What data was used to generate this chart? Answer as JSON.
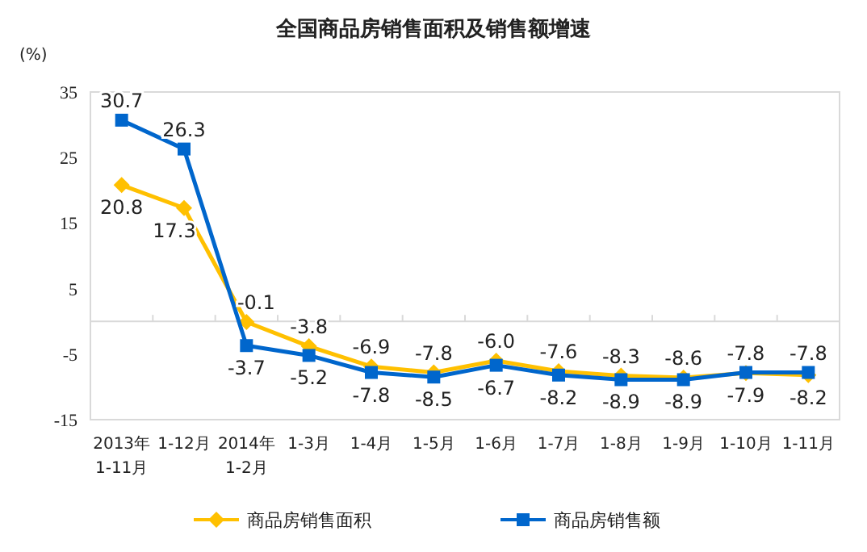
{
  "chart_data": {
    "type": "line",
    "title": "全国商品房销售面积及销售额增速",
    "ylabel": "(%)",
    "categories": [
      "2013年\n1-11月",
      "1-12月",
      "2014年\n1-2月",
      "1-3月",
      "1-4月",
      "1-5月",
      "1-6月",
      "1-7月",
      "1-8月",
      "1-9月",
      "1-10月",
      "1-11月"
    ],
    "series": [
      {
        "name": "商品房销售面积",
        "color": "#ffc000",
        "marker": "diamond",
        "values": [
          20.8,
          17.3,
          -0.1,
          -3.8,
          -6.9,
          -7.8,
          -6.0,
          -7.6,
          -8.3,
          -8.6,
          -7.9,
          -8.2
        ],
        "value_labels": [
          "20.8",
          "17.3",
          "-0.1",
          "-3.8",
          "-6.9",
          "-7.8",
          "-6.0",
          "-7.6",
          "-8.3",
          "-8.6",
          "-7.9",
          "-8.2"
        ]
      },
      {
        "name": "商品房销售额",
        "color": "#0066cc",
        "marker": "square",
        "values": [
          30.7,
          26.3,
          -3.7,
          -5.2,
          -7.8,
          -8.5,
          -6.7,
          -8.2,
          -8.9,
          -8.9,
          -7.8,
          -7.8
        ],
        "value_labels": [
          "30.7",
          "26.3",
          "-3.7",
          "-5.2",
          "-7.8",
          "-8.5",
          "-6.7",
          "-8.2",
          "-8.9",
          "-8.9",
          "-7.8",
          "-7.8"
        ]
      }
    ],
    "ylim": [
      -15,
      35
    ],
    "yticks": [
      -15,
      -5,
      5,
      15,
      25,
      35
    ],
    "legend": "bottom",
    "grid": false
  }
}
